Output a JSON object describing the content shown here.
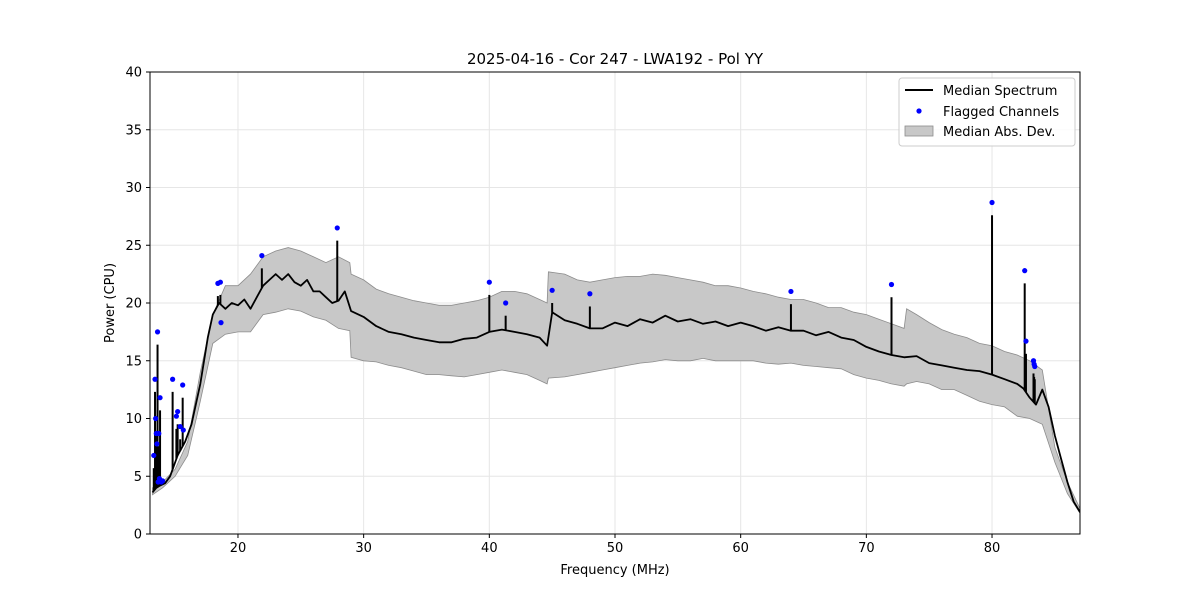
{
  "chart_data": {
    "type": "line",
    "title": "2025-04-16 - Cor 247 - LWA192 - Pol YY",
    "xlabel": "Frequency (MHz)",
    "ylabel": "Power (CPU)",
    "xlim": [
      13,
      87
    ],
    "ylim": [
      0,
      40
    ],
    "x_ticks": [
      20,
      30,
      40,
      50,
      60,
      70,
      80
    ],
    "y_ticks": [
      0,
      5,
      10,
      15,
      20,
      25,
      30,
      35,
      40
    ],
    "grid": true,
    "legend": {
      "placement": "top-right",
      "entries": [
        "Median Spectrum",
        "Flagged Channels",
        "Median Abs. Dev."
      ]
    },
    "colors": {
      "median": "#000000",
      "flagged": "#0000ff",
      "band_fill": "#c8c8c8",
      "band_edge": "#8c8c8c"
    },
    "series": [
      {
        "name": "Median Spectrum",
        "x": [
          13.2,
          13.5,
          13.8,
          14.2,
          14.6,
          15.2,
          15.8,
          16.3,
          17.0,
          17.6,
          18.0,
          18.5,
          19.0,
          19.5,
          20.0,
          20.5,
          21.0,
          21.5,
          22.0,
          22.5,
          23.0,
          23.5,
          24.0,
          24.5,
          25.0,
          25.5,
          26.0,
          26.5,
          27.0,
          27.5,
          28.0,
          28.5,
          29.0,
          30.0,
          31.0,
          32.0,
          33.0,
          34.0,
          35.0,
          36.0,
          37.0,
          38.0,
          39.0,
          40.0,
          41.0,
          42.0,
          43.0,
          44.0,
          44.6,
          45.0,
          46.0,
          47.0,
          48.0,
          49.0,
          50.0,
          51.0,
          52.0,
          53.0,
          54.0,
          55.0,
          56.0,
          57.0,
          58.0,
          59.0,
          60.0,
          61.0,
          62.0,
          63.0,
          64.0,
          65.0,
          66.0,
          67.0,
          68.0,
          69.0,
          70.0,
          71.0,
          72.0,
          73.0,
          74.0,
          75.0,
          76.0,
          77.0,
          78.0,
          79.0,
          80.0,
          81.0,
          82.0,
          82.5,
          83.0,
          83.5,
          84.0,
          84.5,
          85.0,
          85.5,
          86.0,
          86.5,
          87.0
        ],
        "values": [
          3.6,
          4.0,
          4.2,
          4.4,
          5.0,
          6.8,
          8.0,
          9.5,
          13.0,
          17.0,
          19.0,
          20.0,
          19.5,
          20.0,
          19.8,
          20.3,
          19.5,
          20.5,
          21.5,
          22.0,
          22.5,
          22.0,
          22.5,
          21.8,
          21.5,
          22.0,
          21.0,
          21.0,
          20.5,
          20.0,
          20.2,
          21.0,
          19.3,
          18.8,
          18.0,
          17.5,
          17.3,
          17.0,
          16.8,
          16.6,
          16.6,
          16.9,
          17.0,
          17.5,
          17.7,
          17.5,
          17.3,
          17.0,
          16.3,
          19.2,
          18.5,
          18.2,
          17.8,
          17.8,
          18.3,
          18.0,
          18.6,
          18.3,
          18.9,
          18.4,
          18.6,
          18.2,
          18.4,
          18.0,
          18.3,
          18.0,
          17.6,
          17.9,
          17.6,
          17.6,
          17.2,
          17.5,
          17.0,
          16.8,
          16.2,
          15.8,
          15.5,
          15.3,
          15.4,
          14.8,
          14.6,
          14.4,
          14.2,
          14.1,
          13.8,
          13.4,
          13.0,
          12.6,
          11.8,
          11.2,
          12.5,
          11.0,
          8.5,
          6.5,
          4.5,
          2.8,
          1.9
        ]
      },
      {
        "name": "Flagged Channels",
        "x": [
          13.3,
          13.4,
          13.45,
          13.5,
          13.55,
          13.6,
          13.65,
          13.7,
          13.75,
          13.8,
          13.9,
          14.0,
          14.8,
          15.1,
          15.2,
          15.4,
          15.6,
          15.65,
          18.4,
          18.6,
          18.65,
          21.9,
          27.9,
          40.0,
          41.3,
          45.0,
          48.0,
          64.0,
          72.0,
          80.0,
          82.6,
          82.7,
          83.3,
          83.35,
          83.4
        ],
        "values": [
          6.8,
          13.4,
          10.0,
          8.7,
          7.8,
          17.5,
          4.5,
          8.7,
          4.8,
          11.8,
          4.5,
          4.6,
          13.4,
          10.2,
          10.6,
          9.3,
          12.9,
          9.0,
          21.7,
          21.8,
          18.3,
          24.1,
          26.5,
          21.8,
          20.0,
          21.1,
          20.8,
          21.0,
          21.6,
          28.7,
          22.8,
          16.7,
          15.0,
          14.7,
          14.5
        ]
      },
      {
        "name": "Median Abs. Dev.",
        "x": [
          13.2,
          14.0,
          15.0,
          16.0,
          17.0,
          18.0,
          19.0,
          20.0,
          21.0,
          22.0,
          23.0,
          24.0,
          25.0,
          26.0,
          27.0,
          28.0,
          28.9,
          29.0,
          30.0,
          31.0,
          32.0,
          33.0,
          34.0,
          35.0,
          36.0,
          37.0,
          38.0,
          39.0,
          40.0,
          41.0,
          42.0,
          43.0,
          44.0,
          44.6,
          44.7,
          46.0,
          47.0,
          48.0,
          49.0,
          50.0,
          51.0,
          52.0,
          53.0,
          54.0,
          55.0,
          56.0,
          57.0,
          58.0,
          59.0,
          60.0,
          61.0,
          62.0,
          63.0,
          64.0,
          65.0,
          66.0,
          67.0,
          68.0,
          69.0,
          70.0,
          71.0,
          72.0,
          73.0,
          73.2,
          74.0,
          75.0,
          76.0,
          77.0,
          78.0,
          79.0,
          80.0,
          81.0,
          82.0,
          83.0,
          84.0,
          85.0,
          86.0,
          87.0
        ],
        "lower": [
          3.4,
          4.0,
          5.0,
          6.8,
          11.5,
          16.5,
          17.3,
          17.5,
          17.5,
          19.0,
          19.2,
          19.5,
          19.3,
          18.8,
          18.5,
          17.8,
          17.6,
          15.3,
          15.0,
          14.9,
          14.6,
          14.4,
          14.1,
          13.8,
          13.8,
          13.7,
          13.6,
          13.8,
          14.0,
          14.2,
          14.0,
          13.8,
          13.3,
          13.0,
          13.5,
          13.6,
          13.8,
          14.0,
          14.2,
          14.4,
          14.6,
          14.8,
          14.9,
          15.1,
          15.0,
          15.0,
          15.2,
          15.0,
          15.0,
          15.0,
          15.0,
          14.8,
          14.7,
          14.8,
          14.6,
          14.5,
          14.4,
          14.3,
          13.8,
          13.5,
          13.3,
          13.0,
          12.8,
          13.0,
          13.2,
          13.0,
          12.5,
          12.5,
          12.0,
          11.5,
          11.2,
          11.0,
          10.2,
          10.0,
          9.5,
          6.2,
          3.5,
          1.8
        ],
        "upper": [
          4.0,
          4.5,
          5.6,
          8.0,
          14.0,
          19.0,
          21.5,
          21.5,
          22.5,
          24.0,
          24.5,
          24.8,
          24.5,
          24.0,
          23.5,
          24.0,
          23.5,
          22.5,
          22.0,
          21.2,
          20.8,
          20.5,
          20.2,
          20.0,
          19.8,
          19.8,
          20.0,
          20.2,
          20.5,
          21.0,
          21.0,
          20.8,
          20.3,
          20.0,
          22.7,
          22.5,
          22.0,
          21.8,
          22.0,
          22.2,
          22.3,
          22.3,
          22.5,
          22.4,
          22.2,
          22.0,
          21.8,
          21.5,
          21.5,
          21.3,
          21.0,
          20.8,
          20.5,
          20.3,
          20.3,
          20.0,
          19.6,
          19.6,
          19.2,
          19.0,
          18.6,
          18.2,
          17.8,
          19.5,
          19.0,
          18.3,
          17.7,
          17.3,
          17.0,
          16.5,
          16.3,
          15.8,
          15.5,
          15.0,
          14.2,
          7.5,
          4.5,
          2.2
        ]
      }
    ]
  }
}
